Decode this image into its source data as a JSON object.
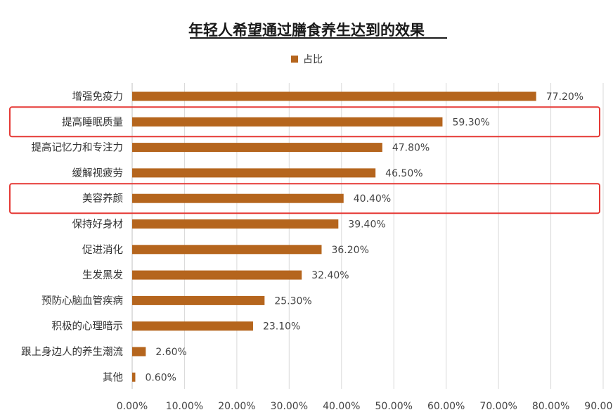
{
  "chart_data": {
    "type": "bar",
    "orientation": "horizontal",
    "title": "年轻人希望通过膳食养生达到的效果",
    "categories": [
      "增强免疫力",
      "提高睡眠质量",
      "提高记忆力和专注力",
      "缓解视疲劳",
      "美容养颜",
      "保持好身材",
      "促进消化",
      "生发黑发",
      "预防心脑血管疾病",
      "积极的心理暗示",
      "跟上身边人的养生潮流",
      "其他"
    ],
    "series": [
      {
        "name": "占比",
        "values": [
          77.2,
          59.3,
          47.8,
          46.5,
          40.4,
          39.4,
          36.2,
          32.4,
          25.3,
          23.1,
          2.6,
          0.6
        ]
      }
    ],
    "value_labels": [
      "77.20%",
      "59.30%",
      "47.80%",
      "46.50%",
      "40.40%",
      "39.40%",
      "36.20%",
      "32.40%",
      "25.30%",
      "23.10%",
      "2.60%",
      "0.60%"
    ],
    "x_ticks": [
      "0.00%",
      "10.00%",
      "20.00%",
      "30.00%",
      "40.00%",
      "50.00%",
      "60.00%",
      "70.00%",
      "80.00%",
      "90.00%"
    ],
    "xlim": [
      0,
      90
    ],
    "grid": true,
    "legend_position": "top",
    "highlighted_categories": [
      "提高睡眠质量",
      "美容养颜"
    ],
    "colors": {
      "bar": "#B5651D",
      "highlight_box": "#E53935",
      "grid": "#D9D9D9"
    }
  }
}
